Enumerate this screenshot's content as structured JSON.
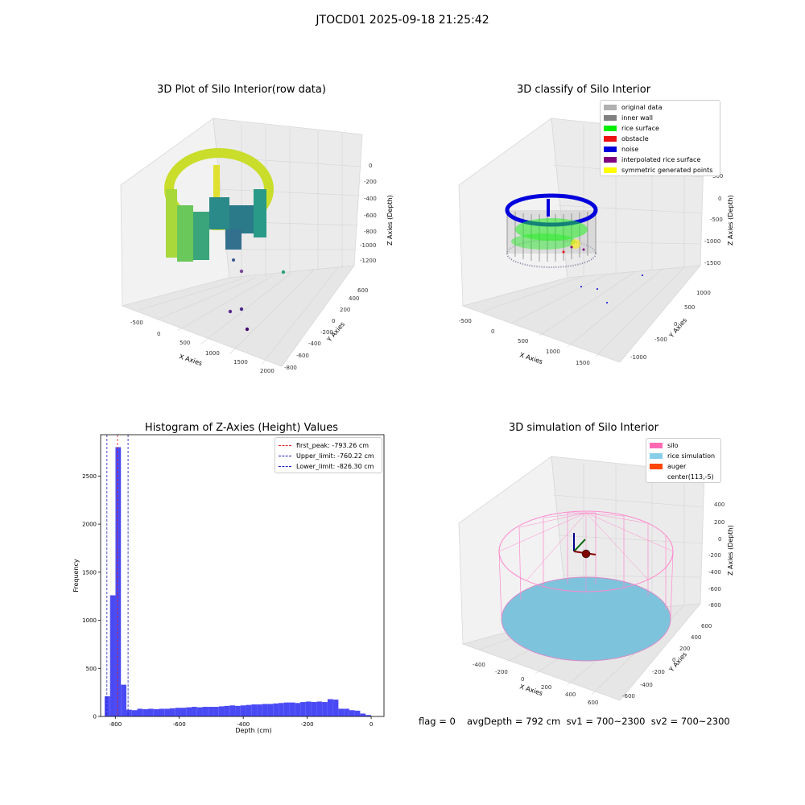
{
  "suptitle": "JTOCD01 2025-09-18 21:25:42",
  "footer": {
    "flag": "flag = 0",
    "metrics": "avgDepth = 792 cm  sv1 = 700~2300  sv2 = 700~2300"
  },
  "plots": {
    "raw": {
      "title": "3D Plot of Silo Interior(row data)",
      "xlabel": "X Axies",
      "ylabel": "Y Axies",
      "zlabel": "Z Axies (Depth)",
      "xticks": [
        "-500",
        "0",
        "500",
        "1000",
        "1500",
        "2000"
      ],
      "yticks": [
        "-800",
        "-600",
        "-400",
        "-200",
        "0",
        "200",
        "400",
        "600"
      ],
      "zticks": [
        "0",
        "-200",
        "-400",
        "-600",
        "-800",
        "-1000",
        "-1200"
      ]
    },
    "classify": {
      "title": "3D classify of Silo Interior",
      "xlabel": "X Axies",
      "ylabel": "Y Axies",
      "zlabel": "Z Axies (Depth)",
      "xticks": [
        "-500",
        "0",
        "500",
        "1000",
        "1500"
      ],
      "yticks": [
        "-1000",
        "-500",
        "0",
        "500",
        "1000"
      ],
      "zticks": [
        "500",
        "0",
        "-500",
        "-1000",
        "-1500"
      ],
      "legend": [
        {
          "label": "original data",
          "color": "#b0b0b0"
        },
        {
          "label": "inner wall",
          "color": "#808080"
        },
        {
          "label": "rice surface",
          "color": "#00ee00"
        },
        {
          "label": "obstacle",
          "color": "#ee1111"
        },
        {
          "label": "noise",
          "color": "#0000dd"
        },
        {
          "label": "interpolated rice surface",
          "color": "#800080"
        },
        {
          "label": "symmetric generated points",
          "color": "#ffff00"
        }
      ]
    },
    "simulation": {
      "title": "3D simulation of Silo Interior",
      "xlabel": "X Axies",
      "ylabel": "Y Axies",
      "zlabel": "Z Axies (Depth)",
      "xticks": [
        "-400",
        "-200",
        "0",
        "200",
        "400",
        "600"
      ],
      "yticks": [
        "-600",
        "-400",
        "-200",
        "0",
        "200",
        "400",
        "600"
      ],
      "zticks": [
        "400",
        "200",
        "0",
        "-200",
        "-400",
        "-600",
        "-800"
      ],
      "legend": [
        {
          "label": "silo",
          "color": "#ff69b4"
        },
        {
          "label": "rice simulation",
          "color": "#87ceeb"
        },
        {
          "label": "auger",
          "color": "#ff4500"
        },
        {
          "label": "center(113,-5)",
          "color": "#ffffff"
        }
      ]
    }
  },
  "chart_data": [
    {
      "type": "scatter",
      "title": "3D Plot of Silo Interior(row data)",
      "xlabel": "X Axies",
      "ylabel": "Y Axies",
      "zlabel": "Z Axies (Depth)",
      "xlim": [
        -600,
        2000
      ],
      "ylim": [
        -800,
        700
      ],
      "zlim": [
        -1300,
        50
      ]
    },
    {
      "type": "scatter",
      "title": "3D classify of Silo Interior",
      "xlabel": "X Axies",
      "ylabel": "Y Axies",
      "zlabel": "Z Axies (Depth)",
      "xlim": [
        -600,
        1800
      ],
      "ylim": [
        -1100,
        1100
      ],
      "zlim": [
        -1600,
        600
      ],
      "series": [
        {
          "name": "original data"
        },
        {
          "name": "inner wall"
        },
        {
          "name": "rice surface"
        },
        {
          "name": "obstacle"
        },
        {
          "name": "noise"
        },
        {
          "name": "interpolated rice surface"
        },
        {
          "name": "symmetric generated points"
        }
      ]
    },
    {
      "type": "bar",
      "title": "Histogram of Z-Axies (Height) Values",
      "xlabel": "Depth (cm)",
      "ylabel": "Frequency",
      "xlim": [
        -846,
        40
      ],
      "ylim": [
        0,
        2930
      ],
      "xticks": [
        -800,
        -600,
        -400,
        -200,
        0
      ],
      "yticks": [
        0,
        500,
        1000,
        1500,
        2000,
        2500
      ],
      "bin_edges": [
        -833.5,
        -816.5,
        -799.5,
        -782.5,
        -765.5,
        -748.5,
        -731.5,
        -714.5,
        -697.5,
        -680.5,
        -663.5,
        -646.5,
        -629.5,
        -612.5,
        -595.5,
        -578.5,
        -561.5,
        -544.5,
        -527.5,
        -510.5,
        -493.5,
        -476.5,
        -459.5,
        -442.5,
        -425.5,
        -408.5,
        -391.5,
        -374.5,
        -357.5,
        -340.5,
        -323.5,
        -306.5,
        -289.5,
        -272.5,
        -255.5,
        -238.5,
        -221.5,
        -204.5,
        -187.5,
        -170.5,
        -153.5,
        -136.5,
        -119.5,
        -102.5,
        -85.5,
        -68.5,
        -51.5,
        -34.5,
        -17.5,
        -0.5
      ],
      "values": [
        210,
        1260,
        2800,
        330,
        70,
        65,
        80,
        75,
        80,
        75,
        80,
        80,
        85,
        90,
        90,
        95,
        100,
        95,
        100,
        100,
        100,
        105,
        110,
        115,
        110,
        115,
        120,
        125,
        125,
        130,
        130,
        135,
        140,
        145,
        145,
        140,
        150,
        155,
        150,
        155,
        150,
        180,
        175,
        80,
        80,
        65,
        60,
        30,
        15
      ],
      "vlines": [
        {
          "label": "first_peak: -793.26 cm",
          "x": -793.26,
          "color": "#d62728"
        },
        {
          "label": "Upper_limit: -760.22 cm",
          "x": -760.22,
          "color": "#1f1fbf"
        },
        {
          "label": "Lower_limit: -826.30 cm",
          "x": -826.3,
          "color": "#1f1fbf"
        }
      ],
      "bar_color": "#4a4af5"
    },
    {
      "type": "other",
      "title": "3D simulation of Silo Interior",
      "xlabel": "X Axies",
      "ylabel": "Y Axies",
      "zlabel": "Z Axies (Depth)",
      "xlim": [
        -500,
        700
      ],
      "ylim": [
        -700,
        700
      ],
      "zlim": [
        -900,
        450
      ],
      "series": [
        {
          "name": "silo"
        },
        {
          "name": "rice simulation"
        },
        {
          "name": "auger"
        },
        {
          "name": "center(113,-5)"
        }
      ]
    }
  ]
}
